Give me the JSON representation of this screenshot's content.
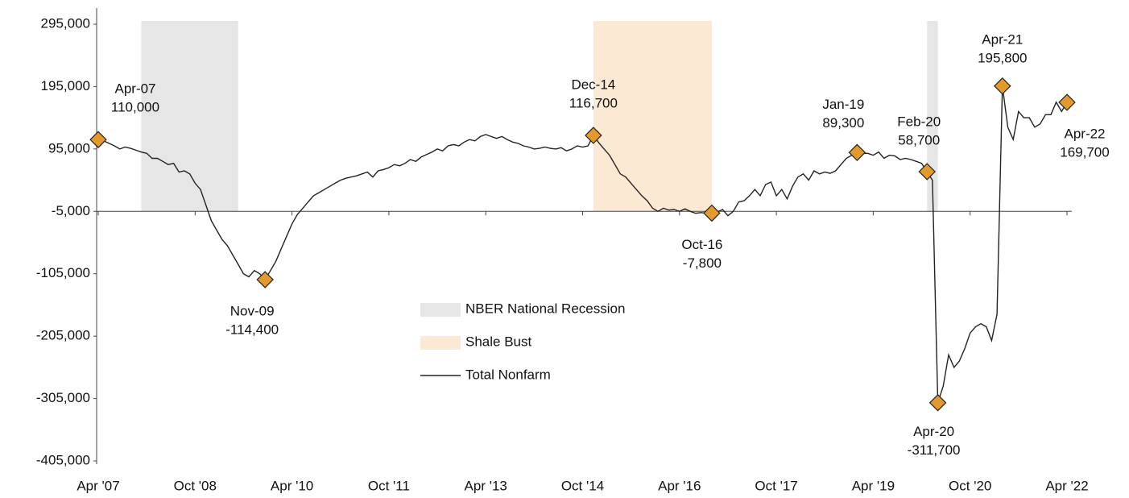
{
  "chart_data": {
    "type": "line",
    "categories": [
      "Apr '07",
      null,
      null,
      null,
      null,
      null,
      null,
      null,
      null,
      null,
      null,
      null,
      null,
      null,
      null,
      null,
      null,
      null,
      "Oct '08",
      null,
      null,
      null,
      null,
      null,
      null,
      null,
      null,
      null,
      null,
      null,
      null,
      null,
      null,
      null,
      null,
      null,
      "Apr '10",
      null,
      null,
      null,
      null,
      null,
      null,
      null,
      null,
      null,
      null,
      null,
      null,
      null,
      null,
      null,
      null,
      null,
      "Oct '11",
      null,
      null,
      null,
      null,
      null,
      null,
      null,
      null,
      null,
      null,
      null,
      null,
      null,
      null,
      null,
      null,
      null,
      "Apr '13",
      null,
      null,
      null,
      null,
      null,
      null,
      null,
      null,
      null,
      null,
      null,
      null,
      null,
      null,
      null,
      null,
      null,
      "Oct '14",
      null,
      null,
      null,
      null,
      null,
      null,
      null,
      null,
      null,
      null,
      null,
      null,
      null,
      null,
      null,
      null,
      null,
      "Apr '16",
      null,
      null,
      null,
      null,
      null,
      null,
      null,
      null,
      null,
      null,
      null,
      null,
      null,
      null,
      null,
      null,
      null,
      "Oct '17",
      null,
      null,
      null,
      null,
      null,
      null,
      null,
      null,
      null,
      null,
      null,
      null,
      null,
      null,
      null,
      null,
      null,
      "Apr '19",
      null,
      null,
      null,
      null,
      null,
      null,
      null,
      null,
      null,
      null,
      null,
      null,
      null,
      null,
      null,
      null,
      null,
      "Oct '20",
      null,
      null,
      null,
      null,
      null,
      null,
      null,
      null,
      null,
      null,
      null,
      null,
      null,
      null,
      null,
      null,
      null,
      "Apr '22"
    ],
    "series": [
      {
        "name": "Total Nonfarm",
        "color": "#222222",
        "values": [
          110000,
          108000,
          104000,
          100000,
          95000,
          98000,
          96000,
          93000,
          90000,
          88000,
          80000,
          80000,
          75000,
          70000,
          72000,
          58000,
          60000,
          55000,
          40000,
          30000,
          5000,
          -20000,
          -35000,
          -50000,
          -60000,
          -75000,
          -90000,
          -105000,
          -110000,
          -100000,
          -105000,
          -114400,
          -100000,
          -85000,
          -65000,
          -45000,
          -25000,
          -10000,
          0,
          10000,
          20000,
          25000,
          30000,
          35000,
          40000,
          45000,
          48000,
          50000,
          52000,
          55000,
          58000,
          50000,
          60000,
          62000,
          65000,
          70000,
          68000,
          72000,
          78000,
          75000,
          82000,
          86000,
          90000,
          95000,
          92000,
          100000,
          102000,
          100000,
          106000,
          110000,
          108000,
          115000,
          118000,
          115000,
          112000,
          115000,
          110000,
          106000,
          104000,
          100000,
          98000,
          95000,
          96000,
          98000,
          96000,
          95000,
          97000,
          92000,
          95000,
          100000,
          98000,
          100000,
          116700,
          105000,
          95000,
          85000,
          70000,
          55000,
          50000,
          40000,
          30000,
          20000,
          12000,
          0,
          -5000,
          0,
          -3000,
          -2000,
          -5000,
          -1000,
          -5000,
          -8000,
          -7000,
          -8000,
          -7800,
          -6000,
          -2000,
          -12000,
          -5000,
          10000,
          12000,
          20000,
          30000,
          20000,
          38000,
          42000,
          20000,
          30000,
          15000,
          35000,
          50000,
          55000,
          45000,
          60000,
          55000,
          58000,
          56000,
          60000,
          70000,
          80000,
          85000,
          89300,
          88000,
          88000,
          85000,
          90000,
          80000,
          85000,
          84000,
          78000,
          80000,
          78000,
          75000,
          72000,
          58700,
          45000,
          -311700,
          -285000,
          -235000,
          -255000,
          -245000,
          -225000,
          -200000,
          -190000,
          -185000,
          -190000,
          -212000,
          -170000,
          195800,
          130000,
          110000,
          155000,
          145000,
          145000,
          130000,
          135000,
          150000,
          150000,
          170000,
          155000,
          169700
        ]
      }
    ],
    "shaded_regions": [
      {
        "name": "NBER National Recession",
        "color": "#e6e6e6",
        "ranges": [
          [
            8,
            26
          ],
          [
            154,
            156
          ]
        ]
      },
      {
        "name": "Shale Bust",
        "color": "#fbe9d4",
        "ranges": [
          [
            92,
            114
          ]
        ]
      }
    ],
    "annotations": [
      {
        "label": "Apr-07",
        "value": 110000,
        "value_label": "110,000"
      },
      {
        "label": "Nov-09",
        "value": -114400,
        "value_label": "-114,400"
      },
      {
        "label": "Dec-14",
        "value": 116700,
        "value_label": "116,700"
      },
      {
        "label": "Oct-16",
        "value": -7800,
        "value_label": "-7,800"
      },
      {
        "label": "Jan-19",
        "value": 89300,
        "value_label": "89,300"
      },
      {
        "label": "Feb-20",
        "value": 58700,
        "value_label": "58,700"
      },
      {
        "label": "Apr-20",
        "value": -311700,
        "value_label": "-311,700"
      },
      {
        "label": "Apr-21",
        "value": 195800,
        "value_label": "195,800"
      },
      {
        "label": "Apr-22",
        "value": 169700,
        "value_label": "169,700"
      }
    ],
    "marker_color": "#e39a2d",
    "ylim": [
      -405000,
      295000
    ],
    "yticks": [
      {
        "value": 295000,
        "label": "295,000"
      },
      {
        "value": 195000,
        "label": "195,000"
      },
      {
        "value": 95000,
        "label": "95,000"
      },
      {
        "value": -5000,
        "label": "-5,000"
      },
      {
        "value": -105000,
        "label": "-105,000"
      },
      {
        "value": -205000,
        "label": "-205,000"
      },
      {
        "value": -305000,
        "label": "-305,000"
      },
      {
        "value": -405000,
        "label": "-405,000"
      }
    ],
    "baseline": -5000
  }
}
